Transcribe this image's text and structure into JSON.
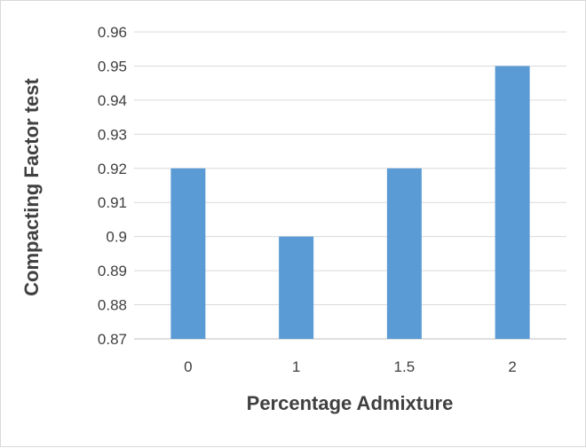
{
  "chart_data": {
    "type": "bar",
    "categories": [
      "0",
      "1",
      "1.5",
      "2"
    ],
    "values": [
      0.92,
      0.9,
      0.92,
      0.95
    ],
    "xlabel": "Percentage Admixture",
    "ylabel": "Compacting Factor test",
    "ylim": [
      0.87,
      0.96
    ],
    "yticks": [
      "0.87",
      "0.88",
      "0.89",
      "0.9",
      "0.91",
      "0.92",
      "0.93",
      "0.94",
      "0.95",
      "0.96"
    ],
    "grid": true,
    "legend": "none",
    "bar_color": "#5b9bd5"
  }
}
